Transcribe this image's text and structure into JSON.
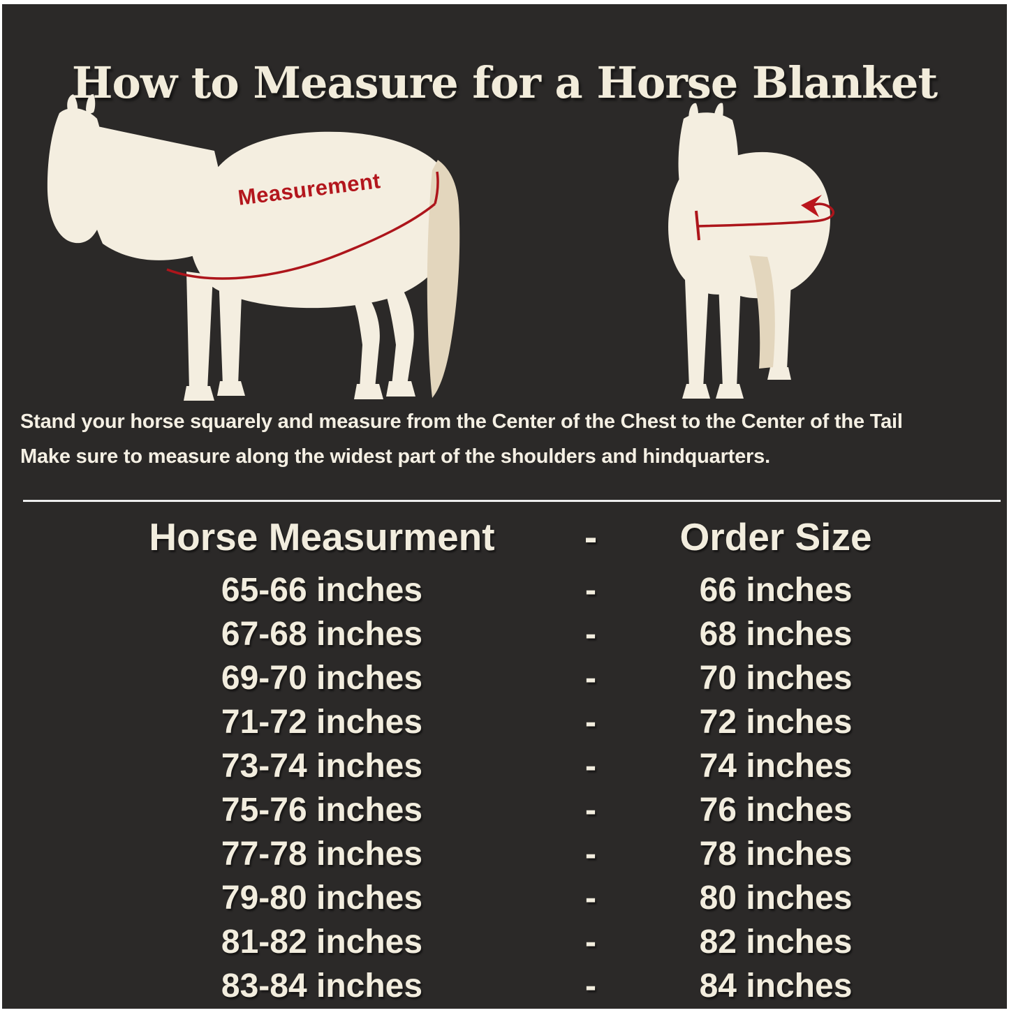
{
  "palette": {
    "panel_background": "#2b2928",
    "cream_text": "#f2ecdb",
    "horse_body": "#f4eee0",
    "horse_shade": "#e3d6bd",
    "accent_red": "#b3161d",
    "divider": "#ededed",
    "page_border": "#ffffff"
  },
  "title": "How to Measure for a Horse Blanket",
  "diagram": {
    "measurement_label": "Measurement",
    "side_horse_alt": "side view horse silhouette with measuring line from chest to tail",
    "front_horse_alt": "front view horse silhouette with measuring line around chest and curved arrow"
  },
  "instructions": {
    "line1": "Stand your horse squarely and measure from the Center of the Chest to the Center of the Tail",
    "line2": "Make sure to measure along the widest part of the shoulders and hindquarters."
  },
  "size_table": {
    "header": {
      "measurement": "Horse Measurment",
      "separator": "-",
      "order": "Order Size"
    },
    "rows": [
      {
        "measurement": "65-66 inches",
        "separator": "-",
        "order": "66 inches"
      },
      {
        "measurement": "67-68 inches",
        "separator": "-",
        "order": "68 inches"
      },
      {
        "measurement": "69-70 inches",
        "separator": "-",
        "order": "70 inches"
      },
      {
        "measurement": "71-72 inches",
        "separator": "-",
        "order": "72 inches"
      },
      {
        "measurement": "73-74 inches",
        "separator": "-",
        "order": "74 inches"
      },
      {
        "measurement": "75-76 inches",
        "separator": "-",
        "order": "76 inches"
      },
      {
        "measurement": "77-78 inches",
        "separator": "-",
        "order": "78 inches"
      },
      {
        "measurement": "79-80 inches",
        "separator": "-",
        "order": "80 inches"
      },
      {
        "measurement": "81-82 inches",
        "separator": "-",
        "order": "82 inches"
      },
      {
        "measurement": "83-84 inches",
        "separator": "-",
        "order": "84 inches"
      }
    ]
  }
}
